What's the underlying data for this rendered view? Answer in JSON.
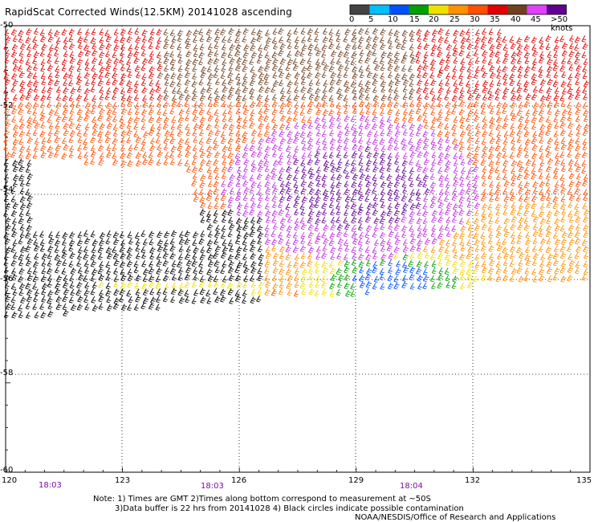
{
  "title": "RapidScat Corrected Winds(12.5KM) 20141028 ascending",
  "legend": {
    "labels": [
      "0",
      "5",
      "10",
      "15",
      "20",
      "25",
      "30",
      "35",
      "40",
      "45",
      ">50 knots"
    ],
    "colors": [
      "#444444",
      "#00bfff",
      "#0050ff",
      "#00a000",
      "#f0e000",
      "#ff9000",
      "#ff5000",
      "#e00000",
      "#704020",
      "#e040ff",
      "#600090"
    ]
  },
  "map": {
    "latitudes": [
      "-50",
      "-52",
      "-54",
      "-56",
      "-58",
      "-60"
    ],
    "longitudes": [
      "120",
      "123",
      "126",
      "129",
      "132",
      "135"
    ],
    "times": [
      "18:03",
      "18:03",
      "18:04"
    ]
  },
  "notes": {
    "line1": "Note: 1) Times are GMT 2)Times along bottom correspond to measurement at ~50S",
    "line2": "3)Data buffer is 22 hrs from 20141028 4) Black circles indicate possible contamination",
    "line3": "NOAA/NESDIS/Office of Research and Applications"
  }
}
